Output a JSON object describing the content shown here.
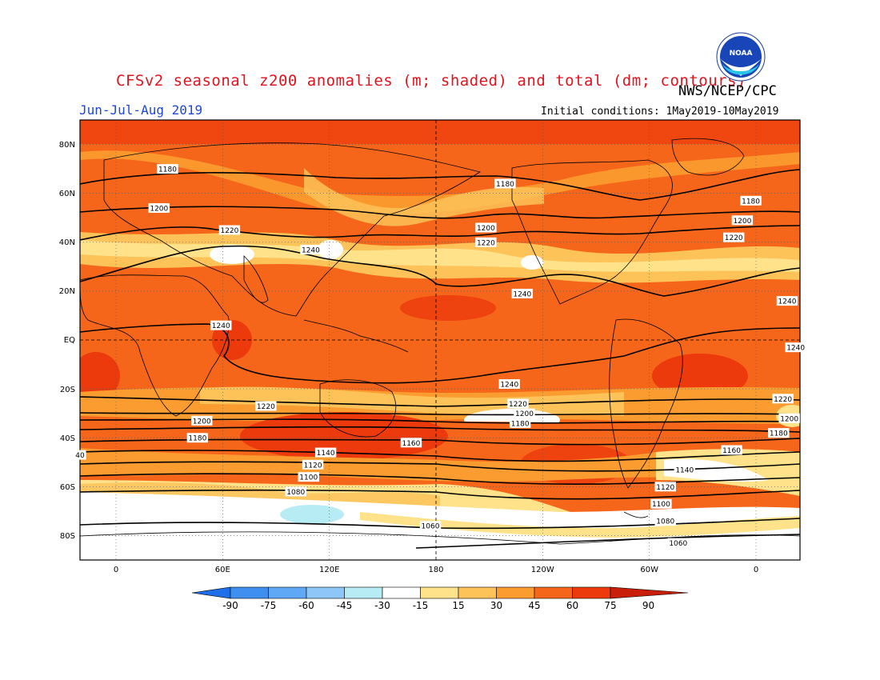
{
  "header": {
    "title": "CFSv2 seasonal z200 anomalies (m; shaded) and total (dm; contours)",
    "period": "Jun-Jul-Aug 2019",
    "agency": "NWS/NCEP/CPC",
    "initial_conditions": "Initial conditions: 1May2019-10May2019",
    "logo_text": "NOAA"
  },
  "colors": {
    "title": "#e0141e",
    "period": "#1e46dc",
    "contour": "#000000"
  },
  "map": {
    "projection": "cylindrical equidistant",
    "lat_ticks": [
      "80N",
      "60N",
      "40N",
      "20N",
      "EQ",
      "20S",
      "40S",
      "60S",
      "80S"
    ],
    "lon_ticks": [
      "0",
      "60E",
      "120E",
      "180",
      "120W",
      "60W",
      "0"
    ],
    "grid": "dotted",
    "reference_lines": [
      "Equator",
      "180"
    ]
  },
  "contour_labels": [
    {
      "text": "1180",
      "lon": 24,
      "lat": 70
    },
    {
      "text": "1180",
      "lon": 182,
      "lat": 64
    },
    {
      "text": "1180",
      "lon": 297,
      "lat": 57
    },
    {
      "text": "1200",
      "lon": 20,
      "lat": 54
    },
    {
      "text": "1200",
      "lon": 173,
      "lat": 46
    },
    {
      "text": "1200",
      "lon": 293,
      "lat": 49
    },
    {
      "text": "1220",
      "lon": 53,
      "lat": 45
    },
    {
      "text": "1220",
      "lon": 173,
      "lat": 40
    },
    {
      "text": "1220",
      "lon": 289,
      "lat": 42
    },
    {
      "text": "1240",
      "lon": 91,
      "lat": 37
    },
    {
      "text": "1240",
      "lon": 190,
      "lat": 19
    },
    {
      "text": "1240",
      "lon": 314,
      "lat": 16
    },
    {
      "text": "1240",
      "lon": 49,
      "lat": 6
    },
    {
      "text": "1240",
      "lon": 318,
      "lat": -3
    },
    {
      "text": "1240",
      "lon": 184,
      "lat": -18
    },
    {
      "text": "1220",
      "lon": 70,
      "lat": -27
    },
    {
      "text": "1220",
      "lon": 188,
      "lat": -26
    },
    {
      "text": "1220",
      "lon": 312,
      "lat": -24
    },
    {
      "text": "1200",
      "lon": 40,
      "lat": -33
    },
    {
      "text": "1200",
      "lon": 191,
      "lat": -30
    },
    {
      "text": "1200",
      "lon": 315,
      "lat": -32
    },
    {
      "text": "1180",
      "lon": 38,
      "lat": -40
    },
    {
      "text": "1180",
      "lon": 189,
      "lat": -34
    },
    {
      "text": "1180",
      "lon": 310,
      "lat": -38
    },
    {
      "text": "1160",
      "lon": 138,
      "lat": -42
    },
    {
      "text": "1160",
      "lon": 288,
      "lat": -45
    },
    {
      "text": "1140",
      "lon": 98,
      "lat": -46
    },
    {
      "text": "1140",
      "lon": 266,
      "lat": -53
    },
    {
      "text": "1120",
      "lon": 92,
      "lat": -51
    },
    {
      "text": "1120",
      "lon": 257,
      "lat": -60
    },
    {
      "text": "1100",
      "lon": 90,
      "lat": -56
    },
    {
      "text": "1100",
      "lon": 255,
      "lat": -67
    },
    {
      "text": "1080",
      "lon": 84,
      "lat": -62
    },
    {
      "text": "1080",
      "lon": 257,
      "lat": -74
    },
    {
      "text": "1060",
      "lon": 147,
      "lat": -76
    },
    {
      "text": "1060",
      "lon": 263,
      "lat": -83
    },
    {
      "text": "40",
      "lon": -17,
      "lat": -47
    }
  ],
  "colorbar": {
    "ticks": [
      "-90",
      "-75",
      "-60",
      "-45",
      "-30",
      "-15",
      "15",
      "30",
      "45",
      "60",
      "75",
      "90"
    ],
    "colors": [
      "#1f6fe8",
      "#3f8ff0",
      "#5ea8f5",
      "#8ec6f7",
      "#b7ecf5",
      "#ffffff",
      "#ffe28a",
      "#fdc258",
      "#fb9c30",
      "#f6661a",
      "#ec3a0c",
      "#c81e0a"
    ]
  }
}
